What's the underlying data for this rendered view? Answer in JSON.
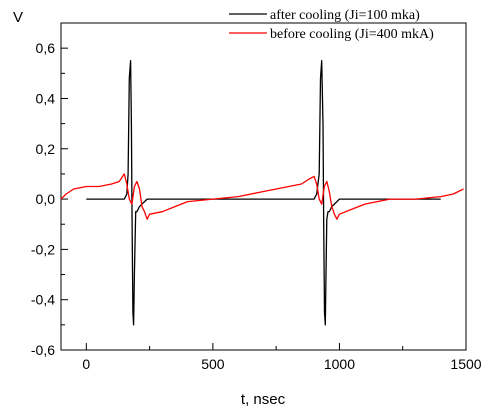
{
  "chart_data": {
    "type": "line",
    "xlabel": "t, nsec",
    "ylabel": "V",
    "xlim": [
      -100,
      1500
    ],
    "ylim": [
      -0.6,
      0.7
    ],
    "x_ticks": [
      0,
      500,
      1000,
      1500
    ],
    "x_tick_labels": [
      "0",
      "500",
      "1000",
      "1500"
    ],
    "y_ticks": [
      -0.6,
      -0.4,
      -0.2,
      0.0,
      0.2,
      0.4,
      0.6
    ],
    "y_tick_labels": [
      "-0,6",
      "-0,4",
      "-0,2",
      "0,0",
      "0,2",
      "0,4",
      "0,6"
    ],
    "grid": false,
    "legend_position": "top-right",
    "series": [
      {
        "name": "after cooling (Ji=100 mka)",
        "color": "#000000",
        "x": [
          0,
          80,
          150,
          160,
          165,
          170,
          175,
          178,
          181,
          184,
          187,
          190,
          195,
          200,
          210,
          220,
          240,
          300,
          400,
          500,
          600,
          700,
          800,
          900,
          910,
          920,
          925,
          930,
          935,
          938,
          941,
          944,
          947,
          950,
          955,
          960,
          970,
          980,
          1000,
          1100,
          1200,
          1300,
          1400
        ],
        "y": [
          0.0,
          0.0,
          0.0,
          0.02,
          0.1,
          0.48,
          0.55,
          0.3,
          -0.1,
          -0.45,
          -0.5,
          -0.3,
          -0.05,
          -0.05,
          -0.03,
          -0.02,
          0.0,
          0.0,
          0.0,
          0.0,
          0.0,
          0.0,
          0.0,
          0.0,
          0.02,
          0.1,
          0.48,
          0.55,
          0.3,
          -0.1,
          -0.45,
          -0.5,
          -0.3,
          -0.08,
          -0.05,
          -0.05,
          -0.03,
          -0.02,
          0.0,
          0.0,
          0.0,
          0.0,
          0.0
        ]
      },
      {
        "name": "before cooling (Ji=400 mkA)",
        "color": "#ff0000",
        "x": [
          -100,
          -80,
          -50,
          0,
          50,
          100,
          130,
          150,
          160,
          170,
          180,
          190,
          200,
          210,
          220,
          230,
          240,
          250,
          300,
          350,
          400,
          500,
          600,
          700,
          800,
          850,
          880,
          900,
          910,
          920,
          930,
          940,
          950,
          960,
          970,
          980,
          990,
          1000,
          1050,
          1100,
          1200,
          1300,
          1400,
          1450,
          1490
        ],
        "y": [
          0.0,
          0.02,
          0.04,
          0.05,
          0.05,
          0.06,
          0.07,
          0.1,
          0.06,
          0.0,
          -0.02,
          0.05,
          0.07,
          0.04,
          -0.03,
          -0.05,
          -0.08,
          -0.06,
          -0.05,
          -0.03,
          -0.01,
          0.0,
          0.01,
          0.03,
          0.05,
          0.06,
          0.08,
          0.09,
          0.06,
          0.0,
          -0.02,
          0.05,
          0.07,
          0.03,
          -0.03,
          -0.06,
          -0.08,
          -0.06,
          -0.04,
          -0.02,
          0.0,
          0.0,
          0.01,
          0.02,
          0.04
        ]
      }
    ]
  }
}
